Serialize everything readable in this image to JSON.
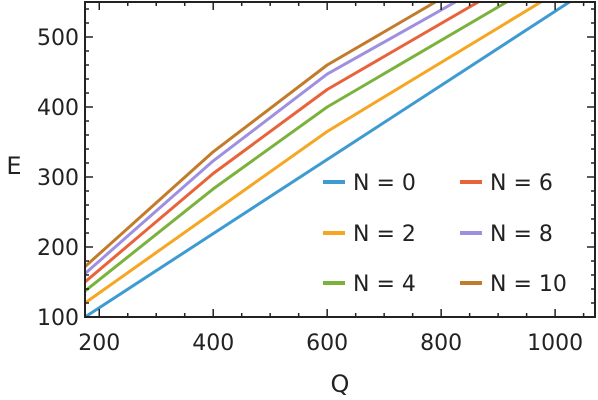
{
  "chart_data": {
    "type": "line",
    "title": "",
    "xlabel": "Q",
    "ylabel": "E",
    "xlim": [
      175,
      1070
    ],
    "ylim": [
      100,
      550
    ],
    "x_ticks": [
      200,
      400,
      600,
      800,
      1000
    ],
    "y_ticks": [
      100,
      200,
      300,
      400,
      500
    ],
    "grid": false,
    "legend_position": "bottom-right",
    "legend_columns": 2,
    "series": [
      {
        "name": "N = 0",
        "color": "#3e9bd2",
        "x": [
          175,
          1025
        ],
        "y": [
          100,
          550
        ]
      },
      {
        "name": "N = 2",
        "color": "#f5a623",
        "x": [
          175,
          600,
          975
        ],
        "y": [
          120,
          365,
          550
        ]
      },
      {
        "name": "N = 4",
        "color": "#7ab23b",
        "x": [
          175,
          400,
          600,
          915
        ],
        "y": [
          137,
          283,
          400,
          550
        ]
      },
      {
        "name": "N = 6",
        "color": "#e8623a",
        "x": [
          175,
          400,
          600,
          865
        ],
        "y": [
          150,
          305,
          425,
          550
        ]
      },
      {
        "name": "N = 8",
        "color": "#9f8fe0",
        "x": [
          175,
          400,
          600,
          825
        ],
        "y": [
          162,
          323,
          447,
          550
        ]
      },
      {
        "name": "N = 10",
        "color": "#c27a2b",
        "x": [
          175,
          400,
          600,
          790
        ],
        "y": [
          172,
          336,
          460,
          550
        ]
      }
    ]
  }
}
